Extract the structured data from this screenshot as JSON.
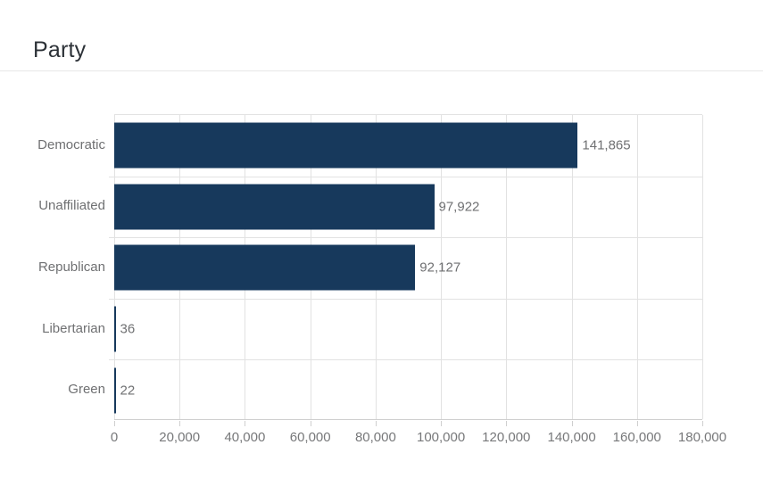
{
  "header": {
    "title": "Party"
  },
  "chart_data": {
    "type": "bar",
    "orientation": "horizontal",
    "title": "Party",
    "categories": [
      "Democratic",
      "Unaffiliated",
      "Republican",
      "Libertarian",
      "Green"
    ],
    "values": [
      141865,
      97922,
      92127,
      36,
      22
    ],
    "value_labels": [
      "141,865",
      "97,922",
      "92,127",
      "36",
      "22"
    ],
    "xlabel": "",
    "ylabel": "",
    "xlim": [
      0,
      180000
    ],
    "x_ticks": [
      0,
      20000,
      40000,
      60000,
      80000,
      100000,
      120000,
      140000,
      160000,
      180000
    ],
    "x_tick_labels": [
      "0",
      "20,000",
      "40,000",
      "60,000",
      "80,000",
      "100,000",
      "120,000",
      "140,000",
      "160,000",
      "180,000"
    ],
    "grid": true,
    "legend": false,
    "colors": {
      "bar": "#17395c",
      "grid": "#e2e2e2",
      "axis": "#cfcfcf",
      "label": "#6f7072",
      "title": "#2c3137",
      "background": "#ffffff"
    }
  }
}
